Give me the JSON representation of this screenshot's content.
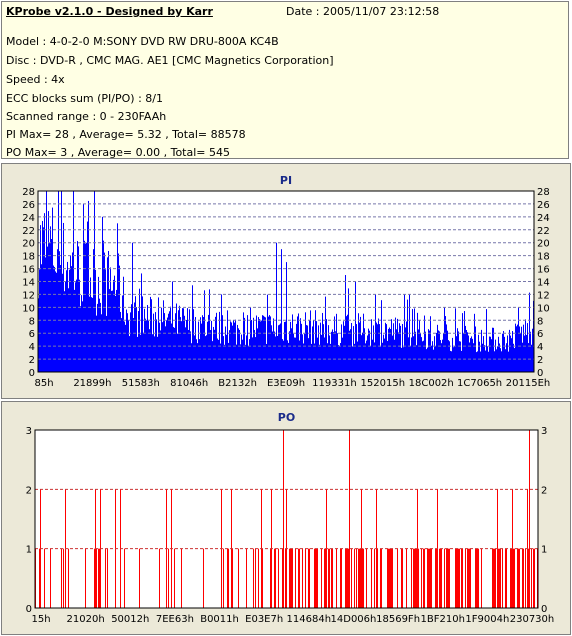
{
  "info": {
    "title": "KProbe v2.1.0 - Designed by Karr",
    "date": "Date : 2005/11/07 23:12:58",
    "lines": [
      "Model : 4-0-2-0 M:SONY    DVD RW DRU-800A  KC4B",
      "Disc : DVD-R , CMC MAG. AE1 [CMC Magnetics Corporation]",
      "Speed : 4x",
      "ECC blocks sum (PI/PO) : 8/1",
      "Scanned range : 0 - 230FAAh",
      "PI Max= 28 , Average= 5.32 , Total= 88578",
      "PO Max= 3 , Average= 0.00 , Total= 545"
    ]
  },
  "chart_data": [
    {
      "type": "bar",
      "title": "PI",
      "ylim": [
        0,
        28
      ],
      "yticks": [
        0,
        2,
        4,
        6,
        8,
        10,
        12,
        14,
        16,
        18,
        20,
        22,
        24,
        26,
        28
      ],
      "xtick_labels": [
        "85h",
        "21899h",
        "51583h",
        "81046h",
        "B2132h",
        "E3E09h",
        "119331h",
        "152015h",
        "18C002h",
        "1C7065h",
        "20115Eh"
      ],
      "series_color": "#0000ff",
      "max": 28,
      "average": 5.32,
      "profile": [
        [
          0,
          19
        ],
        [
          0.02,
          20
        ],
        [
          0.04,
          18
        ],
        [
          0.06,
          16.5
        ],
        [
          0.08,
          15.5
        ],
        [
          0.1,
          15
        ],
        [
          0.12,
          14
        ],
        [
          0.16,
          13.5
        ],
        [
          0.18,
          9
        ],
        [
          0.22,
          8.5
        ],
        [
          0.26,
          8
        ],
        [
          0.3,
          7.5
        ],
        [
          0.35,
          7
        ],
        [
          0.4,
          6.5
        ],
        [
          0.45,
          6.8
        ],
        [
          0.5,
          7
        ],
        [
          0.55,
          7
        ],
        [
          0.6,
          6.5
        ],
        [
          0.7,
          6.5
        ],
        [
          0.8,
          5.5
        ],
        [
          0.9,
          5
        ],
        [
          0.95,
          5
        ],
        [
          1.0,
          7
        ]
      ],
      "peaks": [
        [
          0.04,
          28
        ],
        [
          0.07,
          28
        ],
        [
          0.09,
          26
        ],
        [
          0.13,
          24
        ],
        [
          0.16,
          23
        ],
        [
          0.19,
          20
        ],
        [
          0.27,
          14
        ],
        [
          0.37,
          12
        ],
        [
          0.48,
          20
        ],
        [
          0.49,
          19
        ],
        [
          0.5,
          17
        ],
        [
          0.62,
          15
        ],
        [
          0.64,
          14
        ],
        [
          0.68,
          12
        ],
        [
          0.75,
          12
        ],
        [
          0.82,
          10
        ],
        [
          0.88,
          9
        ],
        [
          0.97,
          10
        ],
        [
          1.0,
          11
        ]
      ]
    },
    {
      "type": "bar",
      "title": "PO",
      "ylim": [
        0,
        3
      ],
      "yticks": [
        0,
        1,
        2,
        3
      ],
      "xtick_labels": [
        "15h",
        "21020h",
        "50012h",
        "7EE63h",
        "B0011h",
        "E03E7h",
        "114684h",
        "14D006h",
        "18569Fh",
        "1BF210h",
        "1F9004h",
        "230730h"
      ],
      "series_color": "#ff0000",
      "max": 3,
      "average": 0.0,
      "density": [
        [
          0,
          0.18
        ],
        [
          0.1,
          0.14
        ],
        [
          0.2,
          0.12
        ],
        [
          0.3,
          0.12
        ],
        [
          0.4,
          0.14
        ],
        [
          0.45,
          0.35
        ],
        [
          0.55,
          0.4
        ],
        [
          0.65,
          0.45
        ],
        [
          0.75,
          0.42
        ],
        [
          0.85,
          0.45
        ],
        [
          1.0,
          0.5
        ]
      ],
      "twos": [
        0.01,
        0.06,
        0.12,
        0.13,
        0.16,
        0.17,
        0.26,
        0.27,
        0.37,
        0.39,
        0.45,
        0.47,
        0.5,
        0.58,
        0.65,
        0.68,
        0.76,
        0.8,
        0.92,
        0.95,
        0.98
      ],
      "threes": [
        0.495,
        0.625,
        0.985
      ]
    }
  ]
}
